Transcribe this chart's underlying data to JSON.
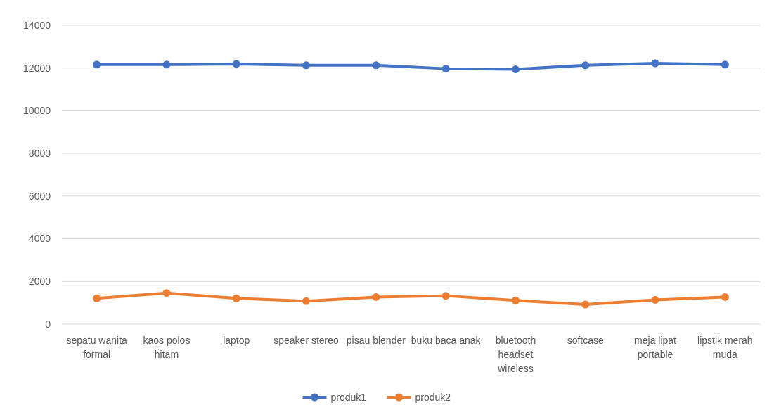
{
  "chart_data": {
    "type": "line",
    "categories": [
      "sepatu wanita formal",
      "kaos polos hitam",
      "laptop",
      "speaker stereo",
      "pisau blender",
      "buku baca anak",
      "bluetooth headset wireless",
      "softcase",
      "meja lipat portable",
      "lipstik merah muda"
    ],
    "series": [
      {
        "name": "produk1",
        "color": "#4472c4",
        "values": [
          12160,
          12160,
          12190,
          12130,
          12130,
          11970,
          11940,
          12130,
          12220,
          12160
        ]
      },
      {
        "name": "produk2",
        "color": "#ed7d31",
        "values": [
          1210,
          1460,
          1210,
          1080,
          1270,
          1330,
          1110,
          920,
          1140,
          1270
        ]
      }
    ],
    "ylim": [
      0,
      14000
    ],
    "yticks": [
      0,
      2000,
      4000,
      6000,
      8000,
      10000,
      12000,
      14000
    ],
    "grid": "y",
    "legend": "bottom",
    "marker": "circle",
    "line_style": "solid"
  }
}
